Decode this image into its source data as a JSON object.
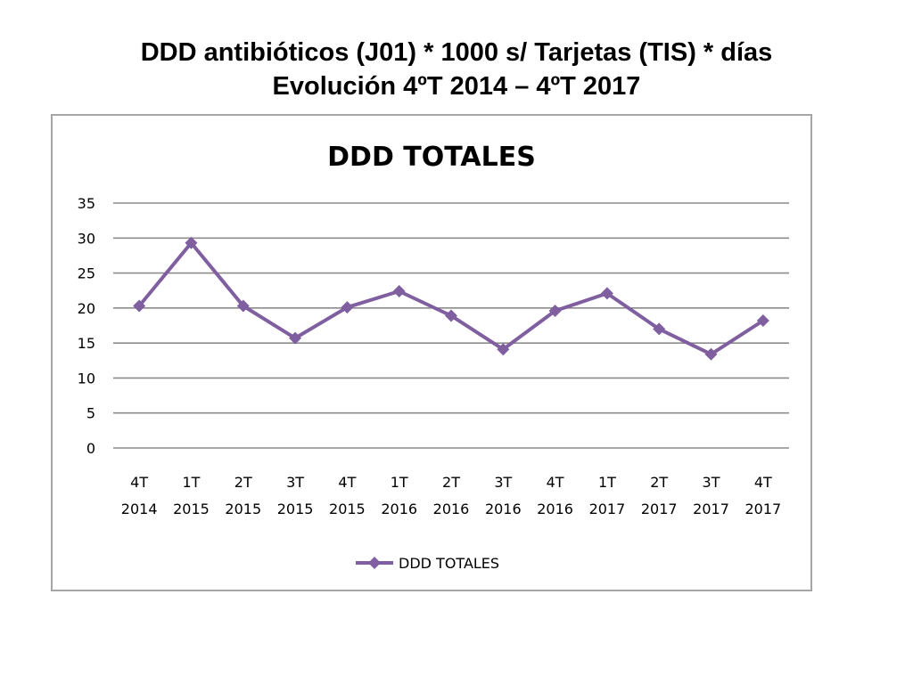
{
  "slide": {
    "title_line1": "DDD antibióticos (J01) * 1000 s/ Tarjetas (TIS) * días",
    "title_line2": "Evolución 4ºT 2014 – 4ºT 2017"
  },
  "chart_data": {
    "type": "line",
    "title": "DDD TOTALES",
    "xlabel": "",
    "ylabel": "",
    "ylim": [
      0,
      35
    ],
    "yticks": [
      0,
      5,
      10,
      15,
      20,
      25,
      30,
      35
    ],
    "grid": true,
    "legend_position": "bottom",
    "categories": [
      [
        "4T",
        "2014"
      ],
      [
        "1T",
        "2015"
      ],
      [
        "2T",
        "2015"
      ],
      [
        "3T",
        "2015"
      ],
      [
        "4T",
        "2015"
      ],
      [
        "1T",
        "2016"
      ],
      [
        "2T",
        "2016"
      ],
      [
        "3T",
        "2016"
      ],
      [
        "4T",
        "2016"
      ],
      [
        "1T",
        "2017"
      ],
      [
        "2T",
        "2017"
      ],
      [
        "3T",
        "2017"
      ],
      [
        "4T",
        "2017"
      ]
    ],
    "series": [
      {
        "name": "DDD TOTALES",
        "color": "#7f5fa0",
        "marker": "diamond",
        "values": [
          20.3,
          29.3,
          20.3,
          15.7,
          20.1,
          22.4,
          18.9,
          14.1,
          19.6,
          22.1,
          17.0,
          13.4,
          18.2
        ]
      }
    ]
  }
}
